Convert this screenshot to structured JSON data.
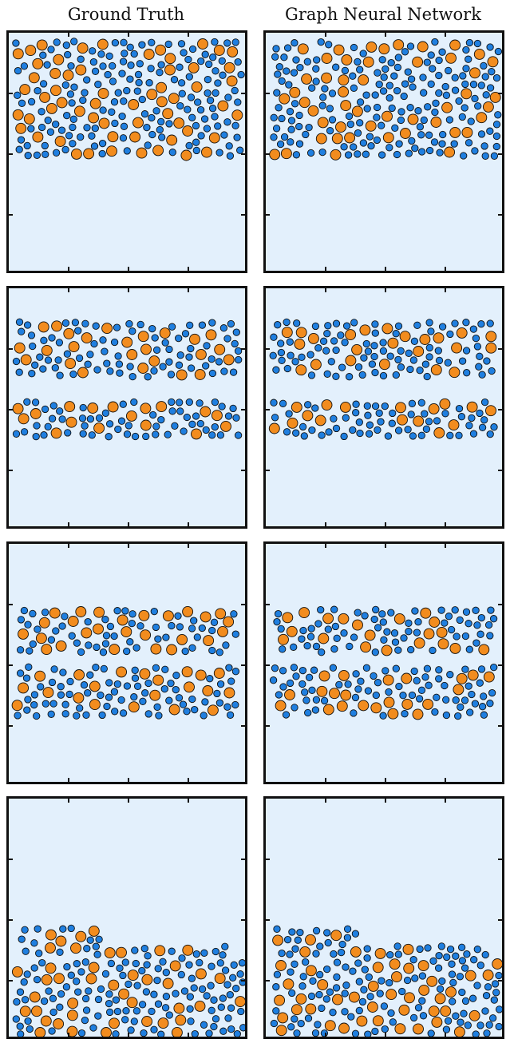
{
  "column_titles": [
    "Ground Truth",
    "Graph Neural Network"
  ],
  "colors": {
    "background": "#e3f0fc",
    "small_particle": "#1f7fe0",
    "large_particle": "#f28c1e",
    "outline": "#111111"
  },
  "panels": [
    {
      "row": 1,
      "column": "Ground Truth",
      "state": "particles packed in upper half"
    },
    {
      "row": 1,
      "column": "Graph Neural Network",
      "state": "particles packed in upper half"
    },
    {
      "row": 2,
      "column": "Ground Truth",
      "state": "particles mixing, upper-middle band"
    },
    {
      "row": 2,
      "column": "Graph Neural Network",
      "state": "particles mixing, upper-middle band"
    },
    {
      "row": 3,
      "column": "Ground Truth",
      "state": "particles falling, middle band"
    },
    {
      "row": 3,
      "column": "Graph Neural Network",
      "state": "particles falling, middle band"
    },
    {
      "row": 4,
      "column": "Ground Truth",
      "state": "particles settled at bottom"
    },
    {
      "row": 4,
      "column": "Graph Neural Network",
      "state": "particles settled at bottom"
    }
  ]
}
